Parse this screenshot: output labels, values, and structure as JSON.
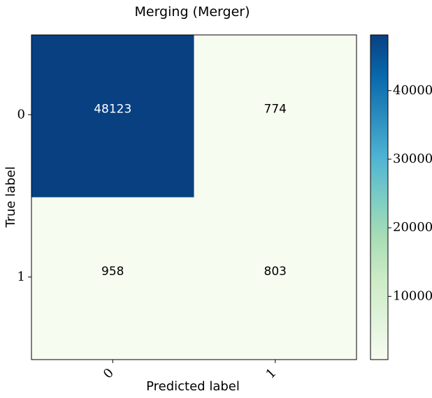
{
  "chart_data": {
    "type": "heatmap",
    "title": "Merging (Merger)",
    "xlabel": "Predicted label",
    "ylabel": "True label",
    "x_categories": [
      "0",
      "1"
    ],
    "y_categories": [
      "0",
      "1"
    ],
    "matrix": [
      [
        48123,
        774
      ],
      [
        958,
        803
      ]
    ],
    "colormap": "GnBu",
    "colorbar": {
      "range": [
        774,
        48123
      ],
      "ticks": [
        10000,
        20000,
        30000,
        40000
      ],
      "tick_labels": [
        "10000",
        "20000",
        "30000",
        "40000"
      ]
    },
    "text_color_light": "#ffffff",
    "text_color_dark": "#000000"
  }
}
